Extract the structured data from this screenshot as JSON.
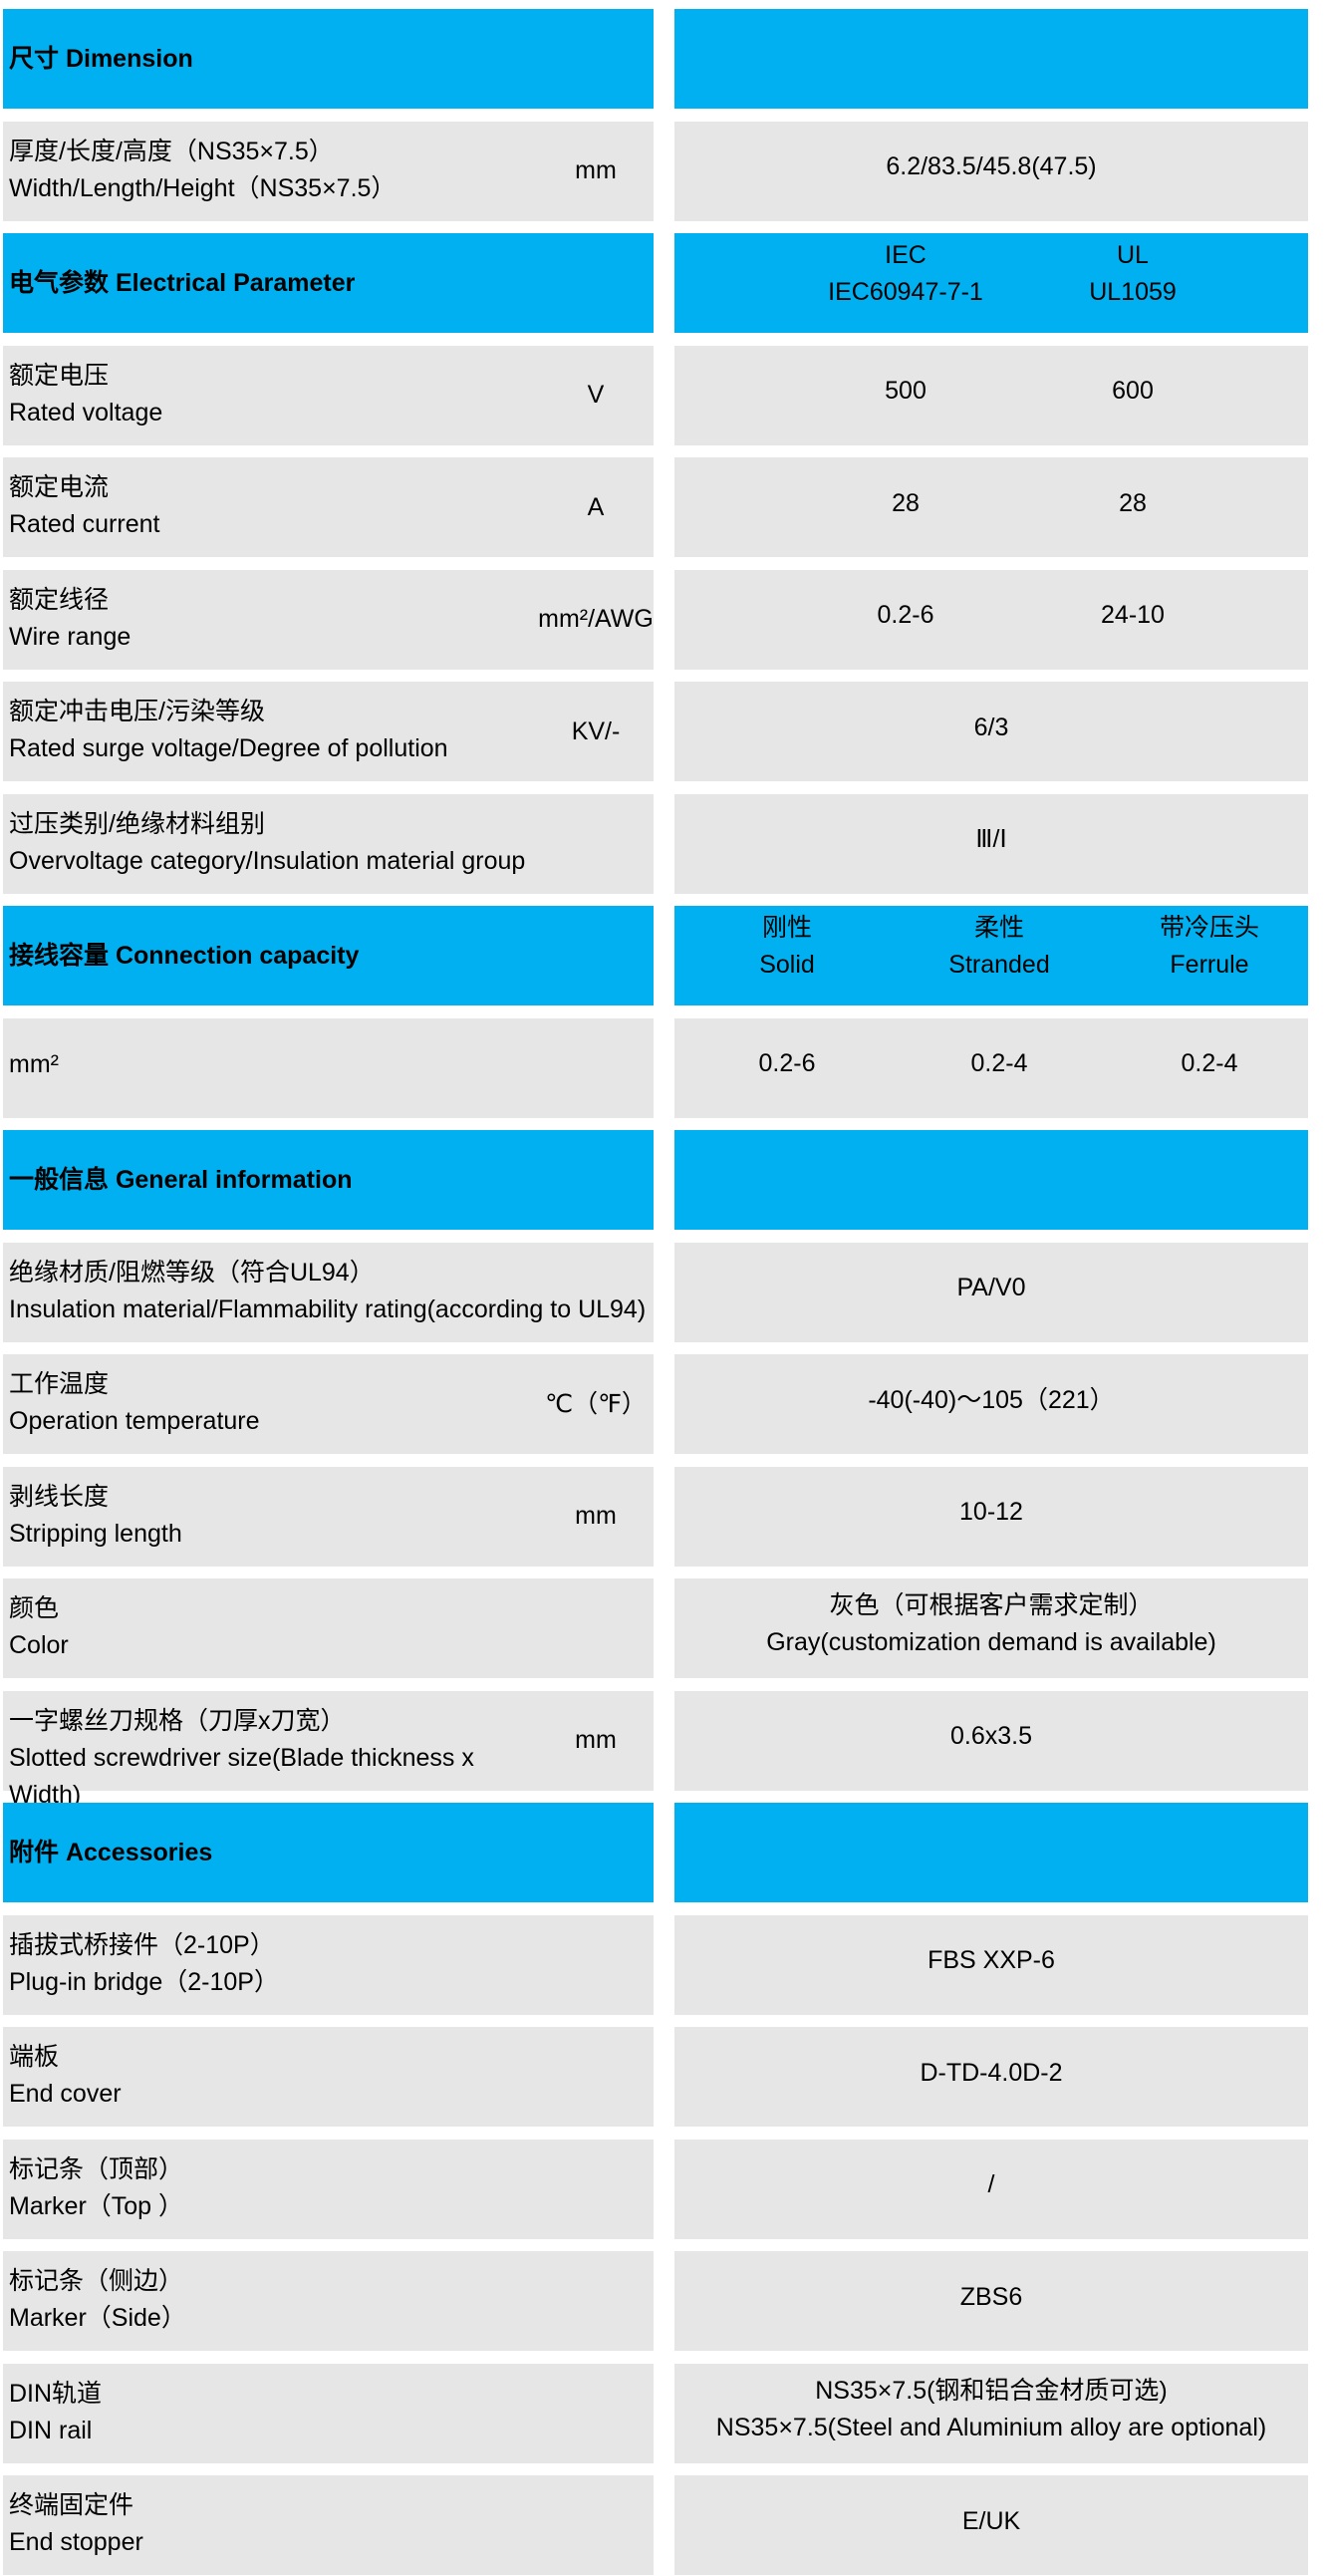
{
  "colors": {
    "header": "#00b0f0",
    "row": "#e7e6e6"
  },
  "rows": [
    {
      "type": "header",
      "title": "尺寸 Dimension",
      "cols": []
    },
    {
      "type": "row",
      "cn": "厚度/长度/高度（NS35×7.5）",
      "en": "Width/Length/Height（NS35×7.5）",
      "unit": "mm",
      "values": [
        [
          "6.2/83.5/45.8(47.5)"
        ]
      ]
    },
    {
      "type": "header",
      "title": "电气参数 Electrical Parameter",
      "cols": [
        [
          "IEC",
          "IEC60947-7-1"
        ],
        [
          "UL",
          "UL1059"
        ]
      ]
    },
    {
      "type": "row",
      "cn": "额定电压",
      "en": "Rated voltage",
      "unit": "V",
      "values": [
        [
          "500"
        ],
        [
          "600"
        ]
      ]
    },
    {
      "type": "row",
      "cn": "额定电流",
      "en": "Rated current",
      "unit": "A",
      "values": [
        [
          "28"
        ],
        [
          "28"
        ]
      ]
    },
    {
      "type": "row",
      "cn": "额定线径",
      "en": "Wire range",
      "unit": "mm²/AWG",
      "values": [
        [
          "0.2-6"
        ],
        [
          "24-10"
        ]
      ]
    },
    {
      "type": "row",
      "cn": "额定冲击电压/污染等级",
      "en": "Rated surge voltage/Degree of pollution",
      "unit": "KV/-",
      "values": [
        [
          "6/3"
        ]
      ]
    },
    {
      "type": "row",
      "cn": "过压类别/绝缘材料组别",
      "en": "Overvoltage category/Insulation material group",
      "unit": "",
      "values": [
        [
          "Ⅲ/Ⅰ"
        ]
      ]
    },
    {
      "type": "header",
      "title": "接线容量 Connection capacity",
      "cols": [
        [
          "刚性",
          "Solid"
        ],
        [
          "柔性",
          "Stranded"
        ],
        [
          "带冷压头",
          "Ferrule"
        ]
      ]
    },
    {
      "type": "row",
      "cn": "mm²",
      "en": "",
      "unit": "",
      "values": [
        [
          "0.2-6"
        ],
        [
          "0.2-4"
        ],
        [
          "0.2-4"
        ]
      ]
    },
    {
      "type": "header",
      "title": "一般信息 General information",
      "cols": []
    },
    {
      "type": "row",
      "cn": "绝缘材质/阻燃等级（符合UL94）",
      "en": "Insulation material/Flammability rating(according to UL94)",
      "unit": "",
      "values": [
        [
          "PA/V0"
        ]
      ]
    },
    {
      "type": "row",
      "cn": "工作温度",
      "en": "Operation temperature",
      "unit": "℃（℉）",
      "values": [
        [
          "-40(-40)～105（221）"
        ]
      ]
    },
    {
      "type": "row",
      "cn": "剥线长度",
      "en": "Stripping length",
      "unit": "mm",
      "values": [
        [
          "10-12"
        ]
      ]
    },
    {
      "type": "row",
      "cn": "颜色",
      "en": "Color",
      "unit": "",
      "values": [
        [
          "灰色（可根据客户需求定制）",
          "Gray(customization demand is available)"
        ]
      ]
    },
    {
      "type": "row",
      "cn": "一字螺丝刀规格（刀厚x刀宽）",
      "en": "Slotted screwdriver size(Blade thickness x Width)",
      "unit": "mm",
      "values": [
        [
          "0.6x3.5"
        ]
      ]
    },
    {
      "type": "header",
      "title": "附件 Accessories",
      "cols": []
    },
    {
      "type": "row",
      "cn": "插拔式桥接件（2-10P）",
      "en": "Plug-in bridge（2-10P）",
      "unit": "",
      "values": [
        [
          "FBS XXP-6"
        ]
      ]
    },
    {
      "type": "row",
      "cn": "端板",
      "en": "End cover",
      "unit": "",
      "values": [
        [
          "D-TD-4.0D-2"
        ]
      ]
    },
    {
      "type": "row",
      "cn": "标记条（顶部）",
      "en": "Marker（Top ）",
      "unit": "",
      "values": [
        [
          "/"
        ]
      ]
    },
    {
      "type": "row",
      "cn": "标记条（侧边）",
      "en": "Marker（Side）",
      "unit": "",
      "values": [
        [
          "ZBS6"
        ]
      ]
    },
    {
      "type": "row",
      "cn": "DIN轨道",
      "en": "DIN rail",
      "unit": "",
      "values": [
        [
          "NS35×7.5(钢和铝合金材质可选)",
          "NS35×7.5(Steel and Aluminium alloy are optional)"
        ]
      ]
    },
    {
      "type": "row",
      "cn": "终端固定件",
      "en": "End stopper",
      "unit": "",
      "values": [
        [
          "E/UK"
        ]
      ]
    }
  ]
}
